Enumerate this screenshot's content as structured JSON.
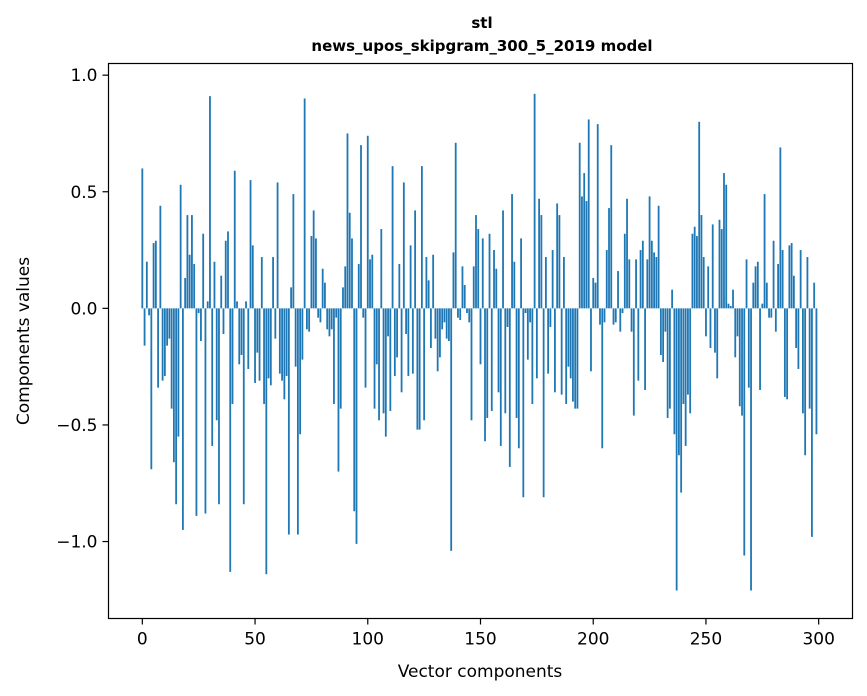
{
  "chart_data": {
    "type": "bar",
    "title_line1": "stl",
    "title_line2": "news_upos_skipgram_300_5_2019 model",
    "xlabel": "Vector components",
    "ylabel": "Components values",
    "xlim": [
      -15,
      315
    ],
    "ylim": [
      -1.33,
      1.05
    ],
    "xticks": [
      0,
      50,
      100,
      150,
      200,
      250,
      300
    ],
    "xtick_labels": [
      "0",
      "50",
      "100",
      "150",
      "200",
      "250",
      "300"
    ],
    "yticks": [
      1.0,
      0.5,
      0.0,
      -0.5,
      -1.0
    ],
    "ytick_labels": [
      "1.0",
      "0.5",
      "0.0",
      "−0.5",
      "−1.0"
    ],
    "bar_color": "#1f77b4",
    "values": [
      0.6,
      -0.16,
      0.2,
      -0.03,
      -0.69,
      0.28,
      0.29,
      -0.34,
      0.44,
      -0.31,
      -0.29,
      -0.16,
      -0.13,
      -0.43,
      -0.66,
      -0.84,
      -0.55,
      0.53,
      -0.95,
      0.13,
      0.4,
      0.23,
      0.4,
      0.19,
      -0.89,
      -0.02,
      -0.14,
      0.32,
      -0.88,
      0.03,
      0.91,
      -0.59,
      0.2,
      -0.48,
      -0.84,
      0.14,
      -0.11,
      0.29,
      0.33,
      -1.13,
      -0.41,
      0.59,
      0.03,
      -0.24,
      -0.2,
      -0.84,
      0.03,
      -0.26,
      0.55,
      0.27,
      -0.32,
      -0.19,
      -0.31,
      0.22,
      -0.41,
      -1.14,
      -0.3,
      -0.33,
      0.22,
      -0.13,
      0.54,
      -0.28,
      -0.31,
      -0.39,
      -0.29,
      -0.97,
      0.09,
      0.49,
      -0.25,
      -0.97,
      -0.54,
      -0.22,
      0.9,
      -0.09,
      -0.1,
      0.31,
      0.42,
      0.3,
      -0.04,
      -0.06,
      0.17,
      0.11,
      -0.09,
      -0.12,
      -0.09,
      -0.41,
      -0.04,
      -0.7,
      -0.43,
      0.09,
      0.18,
      0.75,
      0.41,
      0.3,
      -0.87,
      -1.01,
      0.19,
      0.7,
      -0.04,
      -0.34,
      0.74,
      0.21,
      0.23,
      -0.43,
      -0.24,
      -0.48,
      0.34,
      -0.45,
      -0.55,
      -0.12,
      -0.44,
      0.61,
      -0.29,
      -0.21,
      0.19,
      -0.36,
      0.54,
      -0.11,
      -0.29,
      0.27,
      -0.28,
      0.42,
      -0.52,
      -0.52,
      0.61,
      -0.48,
      0.22,
      0.12,
      -0.17,
      0.23,
      -0.13,
      -0.27,
      -0.21,
      -0.09,
      -0.06,
      -0.13,
      -0.14,
      -1.04,
      0.24,
      0.71,
      -0.04,
      -0.05,
      0.18,
      0.1,
      -0.02,
      -0.06,
      -0.48,
      0.18,
      0.4,
      0.34,
      -0.24,
      0.3,
      -0.57,
      -0.47,
      0.32,
      -0.44,
      0.25,
      0.17,
      -0.36,
      -0.59,
      0.42,
      -0.45,
      -0.08,
      -0.68,
      0.49,
      0.2,
      -0.47,
      -0.6,
      0.3,
      -0.81,
      -0.02,
      -0.22,
      -0.06,
      -0.41,
      0.92,
      -0.3,
      0.47,
      0.4,
      -0.81,
      0.22,
      -0.28,
      -0.08,
      0.25,
      -0.36,
      0.45,
      0.4,
      -0.37,
      0.22,
      -0.41,
      -0.25,
      -0.3,
      -0.4,
      -0.43,
      -0.43,
      0.71,
      0.48,
      0.58,
      0.46,
      0.81,
      -0.27,
      0.13,
      0.11,
      0.79,
      -0.07,
      -0.6,
      -0.06,
      0.25,
      0.43,
      0.7,
      -0.07,
      -0.06,
      0.16,
      -0.1,
      -0.02,
      0.32,
      0.47,
      0.21,
      -0.1,
      -0.46,
      0.21,
      -0.31,
      0.25,
      0.29,
      -0.35,
      0.21,
      0.48,
      0.29,
      0.24,
      0.22,
      0.44,
      -0.2,
      -0.23,
      -0.1,
      -0.47,
      -0.43,
      0.08,
      -0.54,
      -1.21,
      -0.63,
      -0.79,
      -0.41,
      -0.59,
      -0.37,
      -0.45,
      0.32,
      0.35,
      0.31,
      0.8,
      0.4,
      0.22,
      -0.12,
      0.18,
      -0.17,
      0.36,
      -0.19,
      -0.3,
      0.38,
      0.34,
      0.58,
      0.53,
      0.02,
      0.01,
      0.08,
      -0.21,
      -0.12,
      -0.42,
      -0.46,
      -1.06,
      0.21,
      -0.34,
      -1.21,
      0.11,
      0.18,
      0.2,
      -0.35,
      0.02,
      0.49,
      0.11,
      -0.04,
      -0.04,
      0.29,
      -0.1,
      0.19,
      0.69,
      0.25,
      -0.38,
      -0.39,
      0.27,
      0.28,
      0.14,
      -0.17,
      -0.26,
      0.25,
      -0.45,
      -0.63,
      0.22,
      -0.43,
      -0.98,
      0.11,
      -0.54
    ]
  }
}
